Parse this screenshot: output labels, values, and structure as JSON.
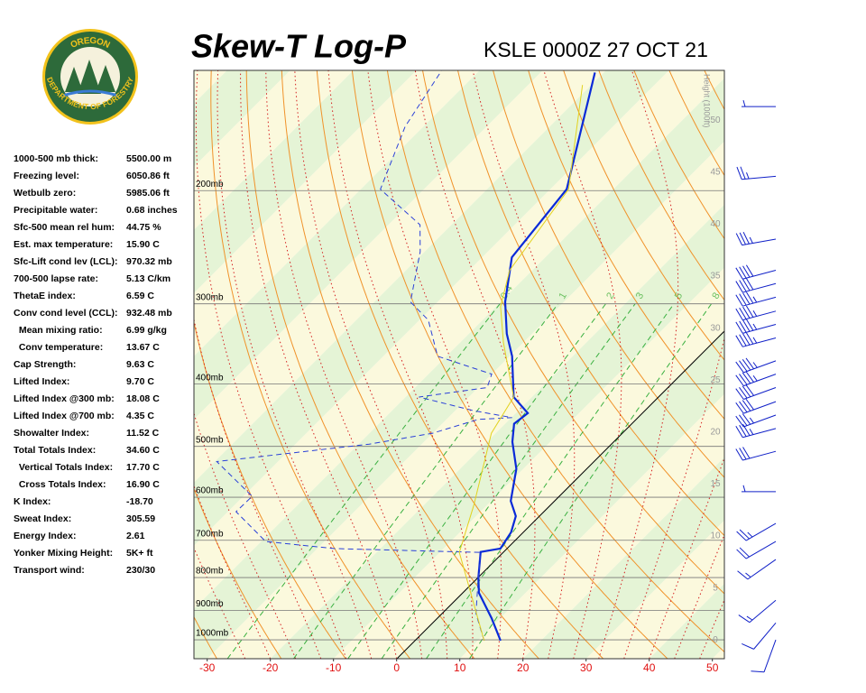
{
  "logo": {
    "top": "OREGON",
    "bottom": "DEPARTMENT OF FORESTRY"
  },
  "indices": [
    {
      "label": "1000-500 mb thick:",
      "value": "5500.00 m"
    },
    {
      "label": "Freezing level:",
      "value": "6050.86 ft"
    },
    {
      "label": "Wetbulb zero:",
      "value": "5985.06 ft"
    },
    {
      "label": "Precipitable water:",
      "value": "0.68 inches"
    },
    {
      "label": "Sfc-500 mean rel hum:",
      "value": "44.75 %"
    },
    {
      "label": "Est. max temperature:",
      "value": "15.90 C"
    },
    {
      "label": "Sfc-Lift cond lev (LCL):",
      "value": "970.32 mb"
    },
    {
      "label": "700-500 lapse rate:",
      "value": "5.13 C/km"
    },
    {
      "label": "ThetaE index:",
      "value": "6.59 C"
    },
    {
      "label": "Conv cond level (CCL):",
      "value": "932.48 mb"
    },
    {
      "label": "  Mean mixing ratio:",
      "value": "6.99 g/kg"
    },
    {
      "label": "  Conv temperature:",
      "value": "13.67 C"
    },
    {
      "label": "Cap Strength:",
      "value": "9.63 C"
    },
    {
      "label": "Lifted Index:",
      "value": "9.70 C"
    },
    {
      "label": "Lifted Index @300 mb:",
      "value": "18.08 C"
    },
    {
      "label": "Lifted Index @700 mb:",
      "value": "4.35 C"
    },
    {
      "label": "Showalter Index:",
      "value": "11.52 C"
    },
    {
      "label": "Total Totals Index:",
      "value": "34.60 C"
    },
    {
      "label": "  Vertical Totals Index:",
      "value": "17.70 C"
    },
    {
      "label": "  Cross Totals Index:",
      "value": "16.90 C"
    },
    {
      "label": "K Index:",
      "value": "-18.70"
    },
    {
      "label": "Sweat Index:",
      "value": "305.59"
    },
    {
      "label": "Energy Index:",
      "value": "2.61"
    },
    {
      "label": "Yonker Mixing Height:",
      "value": "5K+ ft"
    },
    {
      "label": "Transport wind:",
      "value": "230/30"
    }
  ],
  "chart_data": {
    "type": "skew-t",
    "title": "Skew-T Log-P",
    "subtitle": "KSLE 0000Z 27 OCT 21",
    "xlim": [
      -32.1,
      51.9
    ],
    "xticks": [
      -30,
      -20,
      -10,
      0,
      10,
      20,
      30,
      40,
      50
    ],
    "ylim": [
      1070,
      130
    ],
    "log_y": true,
    "yticks": [
      {
        "value": 200,
        "label": "200mb"
      },
      {
        "value": 300,
        "label": "300mb"
      },
      {
        "value": 400,
        "label": "400mb"
      },
      {
        "value": 500,
        "label": "500mb"
      },
      {
        "value": 600,
        "label": "600mb"
      },
      {
        "value": 700,
        "label": "700mb"
      },
      {
        "value": 800,
        "label": "800mb"
      },
      {
        "value": 900,
        "label": "900mb"
      },
      {
        "value": 1000,
        "label": "1000mb"
      }
    ],
    "y2label": "Height (1000ft)",
    "y2lim": [
      -1.8,
      54.8
    ],
    "y2ticks": [
      0,
      5,
      10,
      15,
      20,
      25,
      30,
      35,
      40,
      45,
      50
    ],
    "mixing_ratio_lines": [
      0.4,
      1,
      2,
      3,
      5,
      8
    ],
    "series": [
      {
        "color": "#0a2ad8",
        "dash": false,
        "width": 2.2,
        "pressure": [
          1003,
          925,
          845,
          800,
          730,
          721,
          680,
          642,
          608,
          542,
          492,
          461,
          444,
          419,
          362,
          334,
          298,
          254,
          199,
          131
        ],
        "values": [
          13.6,
          8.6,
          2.6,
          0.1,
          -3.6,
          -1.0,
          -1.9,
          -3.7,
          -6.9,
          -11.1,
          -16.0,
          -18.6,
          -18.1,
          -22.9,
          -29.6,
          -34.0,
          -39.3,
          -45.3,
          -47.4,
          -61.4
        ]
      },
      {
        "color": "#2a40d8",
        "dash": true,
        "width": 1,
        "pressure": [
          1003,
          910,
          826,
          731,
          721,
          703,
          632,
          598,
          528,
          496,
          477,
          454,
          451,
          440,
          419,
          405,
          386,
          362,
          318,
          298,
          249,
          226,
          199,
          159,
          130
        ],
        "values": [
          11.0,
          5.4,
          1.4,
          -3.6,
          -27.4,
          -39.3,
          -48.7,
          -48.6,
          -59.7,
          -38.3,
          -30.0,
          -25.0,
          -19.9,
          -27.1,
          -37.9,
          -28.6,
          -30.0,
          -41.4,
          -48.6,
          -54.3,
          -60.7,
          -65.0,
          -76.9,
          -82.9,
          -86.0
        ]
      },
      {
        "color": "#e2d21e",
        "dash": false,
        "width": 1,
        "pressure": [
          1003,
          731,
          617,
          477,
          419,
          345,
          303,
          266,
          199,
          137
        ],
        "values": [
          11.0,
          -6.9,
          -12.1,
          -20.7,
          -22.9,
          -33.1,
          -39.3,
          -43.6,
          -47.1,
          -61.4
        ]
      }
    ],
    "wind": {
      "pressure": [
        148,
        190,
        238,
        266,
        279,
        293,
        308,
        323,
        339,
        368,
        386,
        405,
        426,
        447,
        469,
        509,
        588,
        659,
        703,
        750,
        868,
        941,
        1000
      ],
      "direction": [
        270,
        265,
        260,
        255,
        255,
        255,
        255,
        255,
        255,
        250,
        250,
        250,
        250,
        250,
        255,
        255,
        270,
        240,
        240,
        235,
        230,
        220,
        200
      ],
      "speed": [
        5,
        25,
        35,
        40,
        40,
        45,
        45,
        45,
        45,
        45,
        45,
        40,
        40,
        35,
        35,
        30,
        5,
        25,
        20,
        15,
        15,
        10,
        10
      ],
      "color": "#1020c8"
    }
  }
}
